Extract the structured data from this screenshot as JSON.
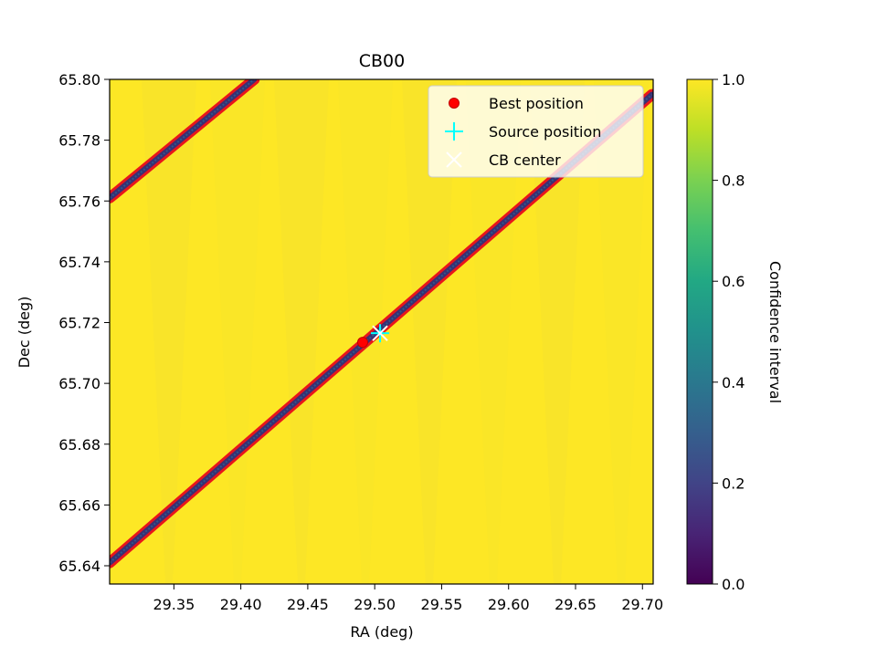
{
  "chart_data": {
    "type": "heatmap",
    "title": "CB00",
    "xlabel": "RA (deg)",
    "ylabel": "Dec (deg)",
    "xlim": [
      29.302,
      29.708
    ],
    "ylim": [
      65.634,
      65.8
    ],
    "x_ticks": [
      "29.35",
      "29.40",
      "29.45",
      "29.50",
      "29.55",
      "29.60",
      "29.65",
      "29.70"
    ],
    "y_ticks": [
      "65.64",
      "65.66",
      "65.68",
      "65.70",
      "65.72",
      "65.74",
      "65.76",
      "65.78",
      "65.80"
    ],
    "grid": false,
    "colormap": "viridis",
    "colorbar": {
      "label": "Confidence interval",
      "range": [
        0.0,
        1.0
      ],
      "ticks": [
        "0.0",
        "0.2",
        "0.4",
        "0.6",
        "0.8",
        "1.0"
      ]
    },
    "low_confidence_bands": [
      {
        "x": [
          29.302,
          29.707
        ],
        "y": [
          65.641,
          65.795
        ]
      },
      {
        "x": [
          29.302,
          29.41
        ],
        "y": [
          65.761,
          65.8
        ]
      }
    ],
    "series": [
      {
        "name": "Best position",
        "x": [
          29.491
        ],
        "y": [
          65.7135
        ],
        "color": "#ff0000",
        "marker": "circle"
      },
      {
        "name": "Source position",
        "x": [
          29.504
        ],
        "y": [
          65.7165
        ],
        "color": "#00ffff",
        "marker": "plus"
      },
      {
        "name": "CB center",
        "x": [
          29.504
        ],
        "y": [
          65.7165
        ],
        "color": "#ffffff",
        "marker": "x"
      }
    ],
    "legend": {
      "position": "upper-right",
      "entries": [
        "Best position",
        "Source position",
        "CB center"
      ]
    }
  }
}
